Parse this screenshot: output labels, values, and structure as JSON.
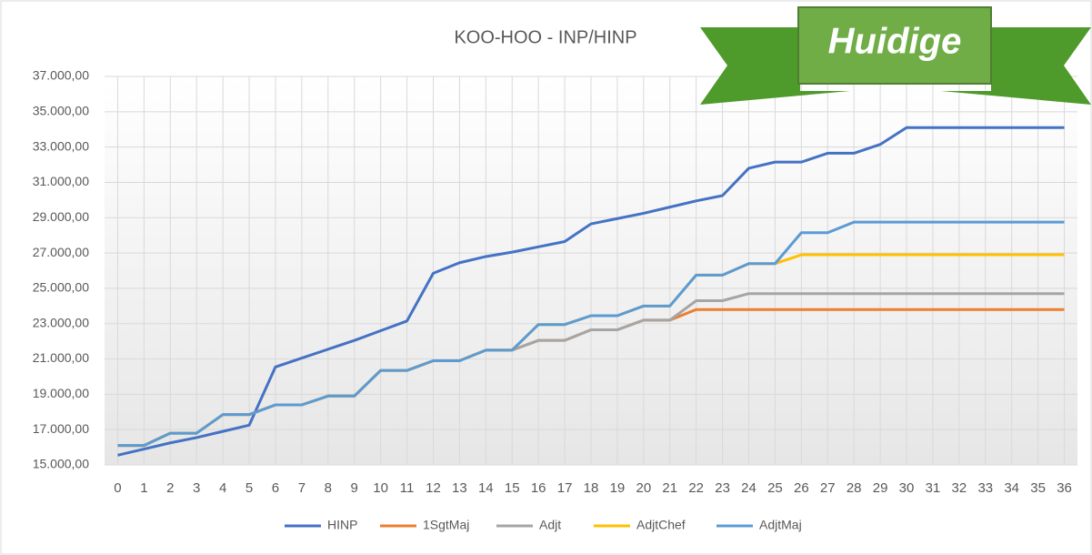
{
  "chart_data": {
    "type": "line",
    "title": "KOO-HOO  - INP/HINP",
    "banner": "Huidige",
    "categories": [
      "0",
      "1",
      "2",
      "3",
      "4",
      "5",
      "6",
      "7",
      "8",
      "9",
      "10",
      "11",
      "12",
      "13",
      "14",
      "15",
      "16",
      "17",
      "18",
      "19",
      "20",
      "21",
      "22",
      "23",
      "24",
      "25",
      "26",
      "27",
      "28",
      "29",
      "30",
      "31",
      "32",
      "33",
      "34",
      "35",
      "36"
    ],
    "ylim": [
      15000,
      37000
    ],
    "yticks": [
      {
        "value": 15000,
        "label": "15.000,00"
      },
      {
        "value": 17000,
        "label": "17.000,00"
      },
      {
        "value": 19000,
        "label": "19.000,00"
      },
      {
        "value": 21000,
        "label": "21.000,00"
      },
      {
        "value": 23000,
        "label": "23.000,00"
      },
      {
        "value": 25000,
        "label": "25.000,00"
      },
      {
        "value": 27000,
        "label": "27.000,00"
      },
      {
        "value": 29000,
        "label": "29.000,00"
      },
      {
        "value": 31000,
        "label": "31.000,00"
      },
      {
        "value": 33000,
        "label": "33.000,00"
      },
      {
        "value": 35000,
        "label": "35.000,00"
      },
      {
        "value": 37000,
        "label": "37.000,00"
      }
    ],
    "grid": true,
    "series": [
      {
        "name": "HINP",
        "color": "#4472c4",
        "values": [
          15550,
          15900,
          16250,
          16550,
          16900,
          17250,
          20550,
          21050,
          21550,
          22050,
          22600,
          23150,
          25850,
          26450,
          26800,
          27050,
          27350,
          27650,
          28650,
          28950,
          29250,
          29600,
          29950,
          30250,
          31800,
          32150,
          32150,
          32650,
          32650,
          33150,
          34100,
          34100,
          34100,
          34100,
          34100,
          34100,
          34100
        ]
      },
      {
        "name": "1SgtMaj",
        "color": "#ed7d31",
        "values": [
          16100,
          16100,
          16800,
          16800,
          17850,
          17850,
          18400,
          18400,
          18900,
          18900,
          20350,
          20350,
          20900,
          20900,
          21500,
          21500,
          22050,
          22050,
          22650,
          22650,
          23200,
          23200,
          23800,
          23800,
          23800,
          23800,
          23800,
          23800,
          23800,
          23800,
          23800,
          23800,
          23800,
          23800,
          23800,
          23800,
          23800
        ]
      },
      {
        "name": "Adjt",
        "color": "#a5a5a5",
        "values": [
          16100,
          16100,
          16800,
          16800,
          17850,
          17850,
          18400,
          18400,
          18900,
          18900,
          20350,
          20350,
          20900,
          20900,
          21500,
          21500,
          22050,
          22050,
          22650,
          22650,
          23200,
          23200,
          24300,
          24300,
          24700,
          24700,
          24700,
          24700,
          24700,
          24700,
          24700,
          24700,
          24700,
          24700,
          24700,
          24700,
          24700
        ]
      },
      {
        "name": "AdjtChef",
        "color": "#ffc000",
        "values": [
          16100,
          16100,
          16800,
          16800,
          17850,
          17850,
          18400,
          18400,
          18900,
          18900,
          20350,
          20350,
          20900,
          20900,
          21500,
          21500,
          22950,
          22950,
          23450,
          23450,
          24000,
          24000,
          25750,
          25750,
          26400,
          26400,
          26900,
          26900,
          26900,
          26900,
          26900,
          26900,
          26900,
          26900,
          26900,
          26900,
          26900
        ]
      },
      {
        "name": "AdjtMaj",
        "color": "#5b9bd5",
        "values": [
          16100,
          16100,
          16800,
          16800,
          17850,
          17850,
          18400,
          18400,
          18900,
          18900,
          20350,
          20350,
          20900,
          20900,
          21500,
          21500,
          22950,
          22950,
          23450,
          23450,
          24000,
          24000,
          25750,
          25750,
          26400,
          26400,
          28150,
          28150,
          28750,
          28750,
          28750,
          28750,
          28750,
          28750,
          28750,
          28750,
          28750
        ]
      }
    ]
  }
}
